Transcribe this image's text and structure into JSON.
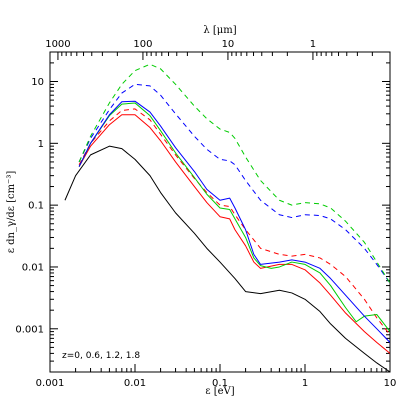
{
  "chart_data": {
    "type": "line",
    "xlabel": "ε [eV]",
    "ylabel": "ε dn_γ/dε [cm⁻³]",
    "top_xlabel": "λ [μm]",
    "annotation": "z=0, 0.6, 1.2, 1.8",
    "x_scale": "log",
    "y_scale": "log",
    "xlim": [
      0.001,
      10
    ],
    "ylim": [
      0.0002,
      30
    ],
    "x_ticks": [
      {
        "v": 0.001,
        "label": "0.001"
      },
      {
        "v": 0.01,
        "label": "0.01"
      },
      {
        "v": 0.1,
        "label": "0.1"
      },
      {
        "v": 1,
        "label": "1"
      },
      {
        "v": 10,
        "label": "10"
      }
    ],
    "y_ticks": [
      {
        "v": 0.001,
        "label": "0.001"
      },
      {
        "v": 0.01,
        "label": "0.01"
      },
      {
        "v": 0.1,
        "label": "0.1"
      },
      {
        "v": 1,
        "label": "1"
      },
      {
        "v": 10,
        "label": "10"
      }
    ],
    "top_ticks": [
      {
        "v": 1000,
        "label": "1000"
      },
      {
        "v": 100,
        "label": "100"
      },
      {
        "v": 10,
        "label": "10"
      },
      {
        "v": 1,
        "label": "1"
      }
    ],
    "series": [
      {
        "color": "#000000",
        "dash": "solid",
        "points": [
          [
            0.0015,
            0.12
          ],
          [
            0.002,
            0.3
          ],
          [
            0.003,
            0.65
          ],
          [
            0.005,
            0.9
          ],
          [
            0.007,
            0.82
          ],
          [
            0.01,
            0.55
          ],
          [
            0.015,
            0.3
          ],
          [
            0.02,
            0.16
          ],
          [
            0.03,
            0.075
          ],
          [
            0.05,
            0.035
          ],
          [
            0.07,
            0.02
          ],
          [
            0.1,
            0.012
          ],
          [
            0.15,
            0.0065
          ],
          [
            0.2,
            0.004
          ],
          [
            0.3,
            0.0037
          ],
          [
            0.5,
            0.0042
          ],
          [
            0.7,
            0.0038
          ],
          [
            1,
            0.003
          ],
          [
            1.5,
            0.0019
          ],
          [
            2,
            0.0012
          ],
          [
            3,
            0.0007
          ],
          [
            5,
            0.0004
          ],
          [
            7,
            0.00028
          ],
          [
            10,
            0.0002
          ]
        ]
      },
      {
        "color": "#ff0000",
        "dash": "solid",
        "points": [
          [
            0.0022,
            0.42
          ],
          [
            0.003,
            0.9
          ],
          [
            0.005,
            2.0
          ],
          [
            0.007,
            2.9
          ],
          [
            0.01,
            2.9
          ],
          [
            0.015,
            1.8
          ],
          [
            0.02,
            1.1
          ],
          [
            0.03,
            0.5
          ],
          [
            0.05,
            0.2
          ],
          [
            0.07,
            0.11
          ],
          [
            0.1,
            0.065
          ],
          [
            0.13,
            0.06
          ],
          [
            0.15,
            0.04
          ],
          [
            0.2,
            0.022
          ],
          [
            0.25,
            0.012
          ],
          [
            0.3,
            0.0095
          ],
          [
            0.5,
            0.011
          ],
          [
            0.7,
            0.011
          ],
          [
            1,
            0.009
          ],
          [
            1.5,
            0.0055
          ],
          [
            2,
            0.0035
          ],
          [
            3,
            0.0018
          ],
          [
            5,
            0.0009
          ],
          [
            7,
            0.0006
          ],
          [
            10,
            0.0004
          ]
        ]
      },
      {
        "color": "#ff0000",
        "dash": "dashed",
        "points": [
          [
            0.0022,
            0.45
          ],
          [
            0.003,
            1.0
          ],
          [
            0.005,
            2.3
          ],
          [
            0.007,
            3.4
          ],
          [
            0.01,
            3.6
          ],
          [
            0.015,
            2.4
          ],
          [
            0.02,
            1.4
          ],
          [
            0.03,
            0.65
          ],
          [
            0.05,
            0.27
          ],
          [
            0.07,
            0.16
          ],
          [
            0.1,
            0.1
          ],
          [
            0.13,
            0.095
          ],
          [
            0.15,
            0.07
          ],
          [
            0.2,
            0.04
          ],
          [
            0.3,
            0.02
          ],
          [
            0.5,
            0.016
          ],
          [
            0.7,
            0.015
          ],
          [
            1,
            0.016
          ],
          [
            1.5,
            0.014
          ],
          [
            2,
            0.011
          ],
          [
            3,
            0.007
          ],
          [
            5,
            0.003
          ],
          [
            7,
            0.0015
          ],
          [
            10,
            0.0008
          ]
        ]
      },
      {
        "color": "#00cc00",
        "dash": "solid",
        "points": [
          [
            0.0022,
            0.42
          ],
          [
            0.003,
            1.0
          ],
          [
            0.005,
            2.8
          ],
          [
            0.007,
            4.3
          ],
          [
            0.01,
            4.5
          ],
          [
            0.015,
            2.8
          ],
          [
            0.02,
            1.6
          ],
          [
            0.03,
            0.7
          ],
          [
            0.05,
            0.28
          ],
          [
            0.07,
            0.15
          ],
          [
            0.1,
            0.09
          ],
          [
            0.13,
            0.085
          ],
          [
            0.15,
            0.06
          ],
          [
            0.2,
            0.03
          ],
          [
            0.25,
            0.014
          ],
          [
            0.3,
            0.0105
          ],
          [
            0.4,
            0.0095
          ],
          [
            0.5,
            0.01
          ],
          [
            0.7,
            0.012
          ],
          [
            1,
            0.011
          ],
          [
            1.5,
            0.008
          ],
          [
            2,
            0.005
          ],
          [
            3,
            0.0022
          ],
          [
            4,
            0.0013
          ],
          [
            5,
            0.0016
          ],
          [
            7,
            0.0017
          ],
          [
            10,
            0.0009
          ]
        ]
      },
      {
        "color": "#0000ff",
        "dash": "solid",
        "points": [
          [
            0.0022,
            0.42
          ],
          [
            0.003,
            1.0
          ],
          [
            0.005,
            2.9
          ],
          [
            0.007,
            4.7
          ],
          [
            0.01,
            4.8
          ],
          [
            0.015,
            3.2
          ],
          [
            0.02,
            1.9
          ],
          [
            0.03,
            0.85
          ],
          [
            0.05,
            0.35
          ],
          [
            0.07,
            0.18
          ],
          [
            0.1,
            0.12
          ],
          [
            0.13,
            0.13
          ],
          [
            0.15,
            0.09
          ],
          [
            0.2,
            0.04
          ],
          [
            0.25,
            0.016
          ],
          [
            0.3,
            0.011
          ],
          [
            0.5,
            0.012
          ],
          [
            0.7,
            0.013
          ],
          [
            1,
            0.012
          ],
          [
            1.5,
            0.0095
          ],
          [
            2,
            0.0065
          ],
          [
            3,
            0.0035
          ],
          [
            5,
            0.0016
          ],
          [
            7,
            0.001
          ],
          [
            10,
            0.0006
          ]
        ]
      },
      {
        "color": "#0000ff",
        "dash": "dashed",
        "points": [
          [
            0.0022,
            0.5
          ],
          [
            0.003,
            1.2
          ],
          [
            0.005,
            3.5
          ],
          [
            0.007,
            6.5
          ],
          [
            0.01,
            9.0
          ],
          [
            0.015,
            8.5
          ],
          [
            0.02,
            6.0
          ],
          [
            0.03,
            3.0
          ],
          [
            0.05,
            1.3
          ],
          [
            0.07,
            0.8
          ],
          [
            0.1,
            0.55
          ],
          [
            0.13,
            0.52
          ],
          [
            0.15,
            0.45
          ],
          [
            0.2,
            0.25
          ],
          [
            0.3,
            0.12
          ],
          [
            0.5,
            0.07
          ],
          [
            0.7,
            0.063
          ],
          [
            1,
            0.07
          ],
          [
            1.5,
            0.068
          ],
          [
            2,
            0.06
          ],
          [
            3,
            0.04
          ],
          [
            5,
            0.02
          ],
          [
            7,
            0.011
          ],
          [
            10,
            0.0055
          ]
        ]
      },
      {
        "color": "#00cc00",
        "dash": "dashed",
        "points": [
          [
            0.0022,
            0.5
          ],
          [
            0.003,
            1.3
          ],
          [
            0.005,
            4.5
          ],
          [
            0.007,
            9.0
          ],
          [
            0.01,
            15
          ],
          [
            0.015,
            19
          ],
          [
            0.02,
            16
          ],
          [
            0.03,
            9.0
          ],
          [
            0.05,
            4.0
          ],
          [
            0.07,
            2.5
          ],
          [
            0.1,
            1.7
          ],
          [
            0.13,
            1.5
          ],
          [
            0.15,
            1.2
          ],
          [
            0.2,
            0.6
          ],
          [
            0.3,
            0.25
          ],
          [
            0.5,
            0.12
          ],
          [
            0.7,
            0.1
          ],
          [
            1,
            0.11
          ],
          [
            1.5,
            0.105
          ],
          [
            2,
            0.09
          ],
          [
            3,
            0.055
          ],
          [
            5,
            0.025
          ],
          [
            7,
            0.012
          ],
          [
            10,
            0.0055
          ]
        ]
      }
    ]
  }
}
